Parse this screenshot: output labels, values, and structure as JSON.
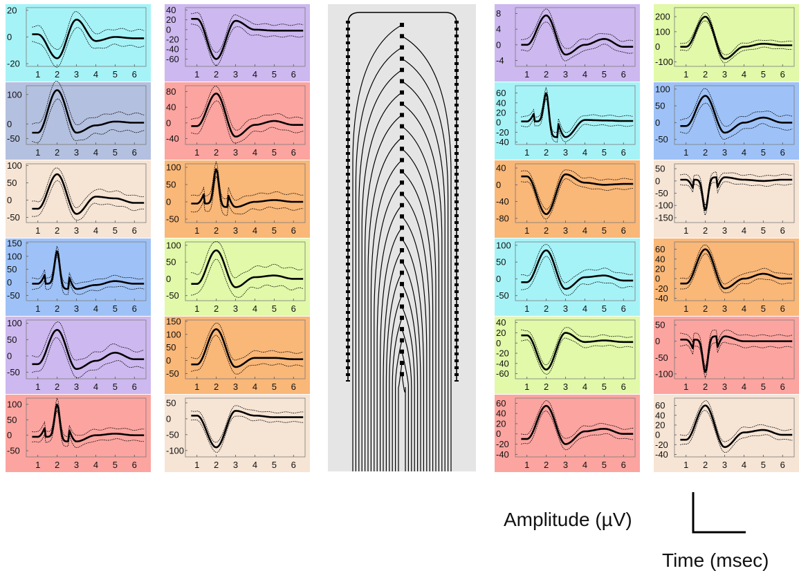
{
  "legend": {
    "amplitude_label": "Amplitude (µV)",
    "time_label": "Time (msec)"
  },
  "colors": {
    "cyan": "#a6f3f7",
    "lavender": "#cdb8ef",
    "slate": "#b4c0df",
    "salmon": "#fca4a0",
    "peach": "#f6e4d4",
    "orange": "#f9b778",
    "blue": "#9ec2f7",
    "lime": "#e1f9a9",
    "probe_bg": "#e5e5e5"
  },
  "chart_data": [
    {
      "type": "line",
      "panel": "col1-row1",
      "bg": "cyan",
      "x": [
        1,
        2,
        3,
        4,
        5,
        6
      ],
      "yticks": [
        "-20",
        "0",
        "20"
      ],
      "ylim": [
        -22,
        22
      ],
      "series": [
        {
          "values": [
            2,
            -16,
            13,
            -3,
            0,
            -1
          ]
        }
      ],
      "spread": 6
    },
    {
      "type": "line",
      "panel": "col1-row2",
      "bg": "slate",
      "x": [
        1,
        2,
        3,
        4,
        5,
        6
      ],
      "yticks": [
        "-50",
        "0",
        "100"
      ],
      "ylim": [
        -70,
        130
      ],
      "series": [
        {
          "values": [
            -30,
            115,
            -30,
            -5,
            8,
            4
          ]
        }
      ],
      "spread": 30
    },
    {
      "type": "line",
      "panel": "col1-row3",
      "bg": "peach",
      "x": [
        1,
        2,
        3,
        4,
        5,
        6
      ],
      "yticks": [
        "-50",
        "0",
        "50",
        "100"
      ],
      "ylim": [
        -65,
        105
      ],
      "series": [
        {
          "values": [
            -25,
            75,
            -40,
            10,
            5,
            -8
          ]
        }
      ],
      "spread": 20
    },
    {
      "type": "line",
      "panel": "col1-row4",
      "bg": "blue",
      "x": [
        1,
        2,
        3,
        4,
        5,
        6
      ],
      "yticks": [
        "-50",
        "0",
        "50",
        "100",
        "150"
      ],
      "ylim": [
        -70,
        155
      ],
      "series": [
        {
          "values": [
            -5,
            120,
            -25,
            -10,
            5,
            -5
          ]
        }
      ],
      "spread": 20,
      "sharp": true
    },
    {
      "type": "line",
      "panel": "col1-row5",
      "bg": "lavender",
      "x": [
        1,
        2,
        3,
        4,
        5,
        6
      ],
      "yticks": [
        "-50",
        "0",
        "50",
        "100"
      ],
      "ylim": [
        -70,
        110
      ],
      "series": [
        {
          "values": [
            -25,
            80,
            -40,
            -15,
            10,
            -10
          ]
        }
      ],
      "spread": 25
    },
    {
      "type": "line",
      "panel": "col1-row6",
      "bg": "salmon",
      "x": [
        1,
        2,
        3,
        4,
        5,
        6
      ],
      "yticks": [
        "-50",
        "0",
        "50",
        "100"
      ],
      "ylim": [
        -70,
        120
      ],
      "series": [
        {
          "values": [
            -5,
            100,
            -20,
            0,
            5,
            0
          ]
        }
      ],
      "spread": 18,
      "sharp": true
    },
    {
      "type": "line",
      "panel": "col2-row1",
      "bg": "lavender",
      "x": [
        1,
        2,
        3,
        4,
        5,
        6
      ],
      "yticks": [
        "-60",
        "-40",
        "-20",
        "0",
        "20",
        "40"
      ],
      "ylim": [
        -75,
        45
      ],
      "series": [
        {
          "values": [
            22,
            -60,
            18,
            0,
            -2,
            -2
          ]
        }
      ],
      "spread": 12
    },
    {
      "type": "line",
      "panel": "col2-row2",
      "bg": "salmon",
      "x": [
        1,
        2,
        3,
        4,
        5,
        6
      ],
      "yticks": [
        "-40",
        "0",
        "40",
        "80"
      ],
      "ylim": [
        -55,
        95
      ],
      "series": [
        {
          "values": [
            -8,
            75,
            -35,
            -5,
            5,
            -5
          ]
        }
      ],
      "spread": 18
    },
    {
      "type": "line",
      "panel": "col2-row3",
      "bg": "orange",
      "x": [
        1,
        2,
        3,
        4,
        5,
        6
      ],
      "yticks": [
        "-50",
        "0",
        "50",
        "100"
      ],
      "ylim": [
        -60,
        110
      ],
      "series": [
        {
          "values": [
            -5,
            95,
            -15,
            0,
            5,
            0
          ]
        }
      ],
      "spread": 22,
      "sharp": true
    },
    {
      "type": "line",
      "panel": "col2-row4",
      "bg": "lime",
      "x": [
        1,
        2,
        3,
        4,
        5,
        6
      ],
      "yticks": [
        "-50",
        "0",
        "50",
        "100"
      ],
      "ylim": [
        -65,
        110
      ],
      "series": [
        {
          "values": [
            -15,
            85,
            -25,
            5,
            10,
            0
          ]
        }
      ],
      "spread": 30
    },
    {
      "type": "line",
      "panel": "col2-row5",
      "bg": "orange",
      "x": [
        1,
        2,
        3,
        4,
        5,
        6
      ],
      "yticks": [
        "-50",
        "0",
        "50",
        "100",
        "150"
      ],
      "ylim": [
        -70,
        155
      ],
      "series": [
        {
          "values": [
            -15,
            120,
            -25,
            10,
            10,
            5
          ]
        }
      ],
      "spread": 25
    },
    {
      "type": "line",
      "panel": "col2-row6",
      "bg": "peach",
      "x": [
        1,
        2,
        3,
        4,
        5,
        6
      ],
      "yticks": [
        "-100",
        "-50",
        "0",
        "50"
      ],
      "ylim": [
        -120,
        65
      ],
      "series": [
        {
          "values": [
            10,
            -90,
            25,
            10,
            5,
            5
          ]
        }
      ],
      "spread": 15
    },
    {
      "type": "line",
      "panel": "col4-row1",
      "bg": "lavender",
      "x": [
        1,
        2,
        3,
        4,
        5,
        6
      ],
      "yticks": [
        "-4",
        "0",
        "4",
        "8"
      ],
      "ylim": [
        -5.5,
        9.5
      ],
      "series": [
        {
          "values": [
            0,
            7.5,
            -2.5,
            0,
            1.5,
            -0.5
          ]
        }
      ],
      "spread": 1.5
    },
    {
      "type": "line",
      "panel": "col4-row2",
      "bg": "cyan",
      "x": [
        1,
        2,
        3,
        4,
        5,
        6
      ],
      "yticks": [
        "-40",
        "-20",
        "0",
        "20",
        "40",
        "60"
      ],
      "ylim": [
        -45,
        75
      ],
      "series": [
        {
          "values": [
            2,
            60,
            -30,
            5,
            4,
            3
          ]
        }
      ],
      "spread": 10,
      "sharp": true
    },
    {
      "type": "line",
      "panel": "col4-row3",
      "bg": "orange",
      "x": [
        1,
        2,
        3,
        4,
        5,
        6
      ],
      "yticks": [
        "-80",
        "-40",
        "0",
        "40"
      ],
      "ylim": [
        -90,
        50
      ],
      "series": [
        {
          "values": [
            20,
            -70,
            25,
            5,
            0,
            2
          ]
        }
      ],
      "spread": 12
    },
    {
      "type": "line",
      "panel": "col4-row4",
      "bg": "cyan",
      "x": [
        1,
        2,
        3,
        4,
        5,
        6
      ],
      "yticks": [
        "-50",
        "0",
        "50",
        "100"
      ],
      "ylim": [
        -65,
        110
      ],
      "series": [
        {
          "values": [
            -10,
            85,
            -30,
            5,
            10,
            -5
          ]
        }
      ],
      "spread": 20
    },
    {
      "type": "line",
      "panel": "col4-row5",
      "bg": "lime",
      "x": [
        1,
        2,
        3,
        4,
        5,
        6
      ],
      "yticks": [
        "-60",
        "-40",
        "-20",
        "0",
        "20",
        "40"
      ],
      "ylim": [
        -70,
        45
      ],
      "series": [
        {
          "values": [
            15,
            -52,
            20,
            2,
            5,
            2
          ]
        }
      ],
      "spread": 10
    },
    {
      "type": "line",
      "panel": "col4-row6",
      "bg": "salmon",
      "x": [
        1,
        2,
        3,
        4,
        5,
        6
      ],
      "yticks": [
        "-40",
        "-20",
        "0",
        "20",
        "40",
        "60"
      ],
      "ylim": [
        -45,
        70
      ],
      "series": [
        {
          "values": [
            -10,
            55,
            -20,
            5,
            10,
            0
          ]
        }
      ],
      "spread": 10
    },
    {
      "type": "line",
      "panel": "col5-row1",
      "bg": "lime",
      "x": [
        1,
        2,
        3,
        4,
        5,
        6
      ],
      "yticks": [
        "-100",
        "0",
        "100",
        "200"
      ],
      "ylim": [
        -130,
        260
      ],
      "series": [
        {
          "values": [
            0,
            200,
            -80,
            0,
            20,
            10
          ]
        }
      ],
      "spread": 25
    },
    {
      "type": "line",
      "panel": "col5-row2",
      "bg": "blue",
      "x": [
        1,
        2,
        3,
        4,
        5,
        6
      ],
      "yticks": [
        "-50",
        "0",
        "50",
        "100"
      ],
      "ylim": [
        -65,
        110
      ],
      "series": [
        {
          "values": [
            -10,
            80,
            -30,
            0,
            15,
            0
          ]
        }
      ],
      "spread": 20
    },
    {
      "type": "line",
      "panel": "col5-row3",
      "bg": "peach",
      "x": [
        1,
        2,
        3,
        4,
        5,
        6
      ],
      "yticks": [
        "-150",
        "-100",
        "-50",
        "0",
        "50"
      ],
      "ylim": [
        -170,
        70
      ],
      "series": [
        {
          "values": [
            5,
            -120,
            15,
            5,
            0,
            5
          ]
        }
      ],
      "spread": 20,
      "sharp": true
    },
    {
      "type": "line",
      "panel": "col5-row4",
      "bg": "orange",
      "x": [
        1,
        2,
        3,
        4,
        5,
        6
      ],
      "yticks": [
        "-40",
        "-20",
        "0",
        "20",
        "40",
        "60"
      ],
      "ylim": [
        -45,
        75
      ],
      "series": [
        {
          "values": [
            -10,
            60,
            -20,
            0,
            10,
            0
          ]
        }
      ],
      "spread": 10
    },
    {
      "type": "line",
      "panel": "col5-row5",
      "bg": "salmon",
      "x": [
        1,
        2,
        3,
        4,
        5,
        6
      ],
      "yticks": [
        "-100",
        "-50",
        "0",
        "50"
      ],
      "ylim": [
        -115,
        65
      ],
      "series": [
        {
          "values": [
            5,
            -95,
            15,
            0,
            0,
            0
          ]
        }
      ],
      "spread": 18,
      "sharp": true
    },
    {
      "type": "line",
      "panel": "col5-row6",
      "bg": "peach",
      "x": [
        1,
        2,
        3,
        4,
        5,
        6
      ],
      "yticks": [
        "-40",
        "-20",
        "0",
        "20",
        "40",
        "60"
      ],
      "ylim": [
        -45,
        75
      ],
      "series": [
        {
          "values": [
            -10,
            60,
            -25,
            5,
            10,
            0
          ]
        }
      ],
      "spread": 10
    }
  ]
}
